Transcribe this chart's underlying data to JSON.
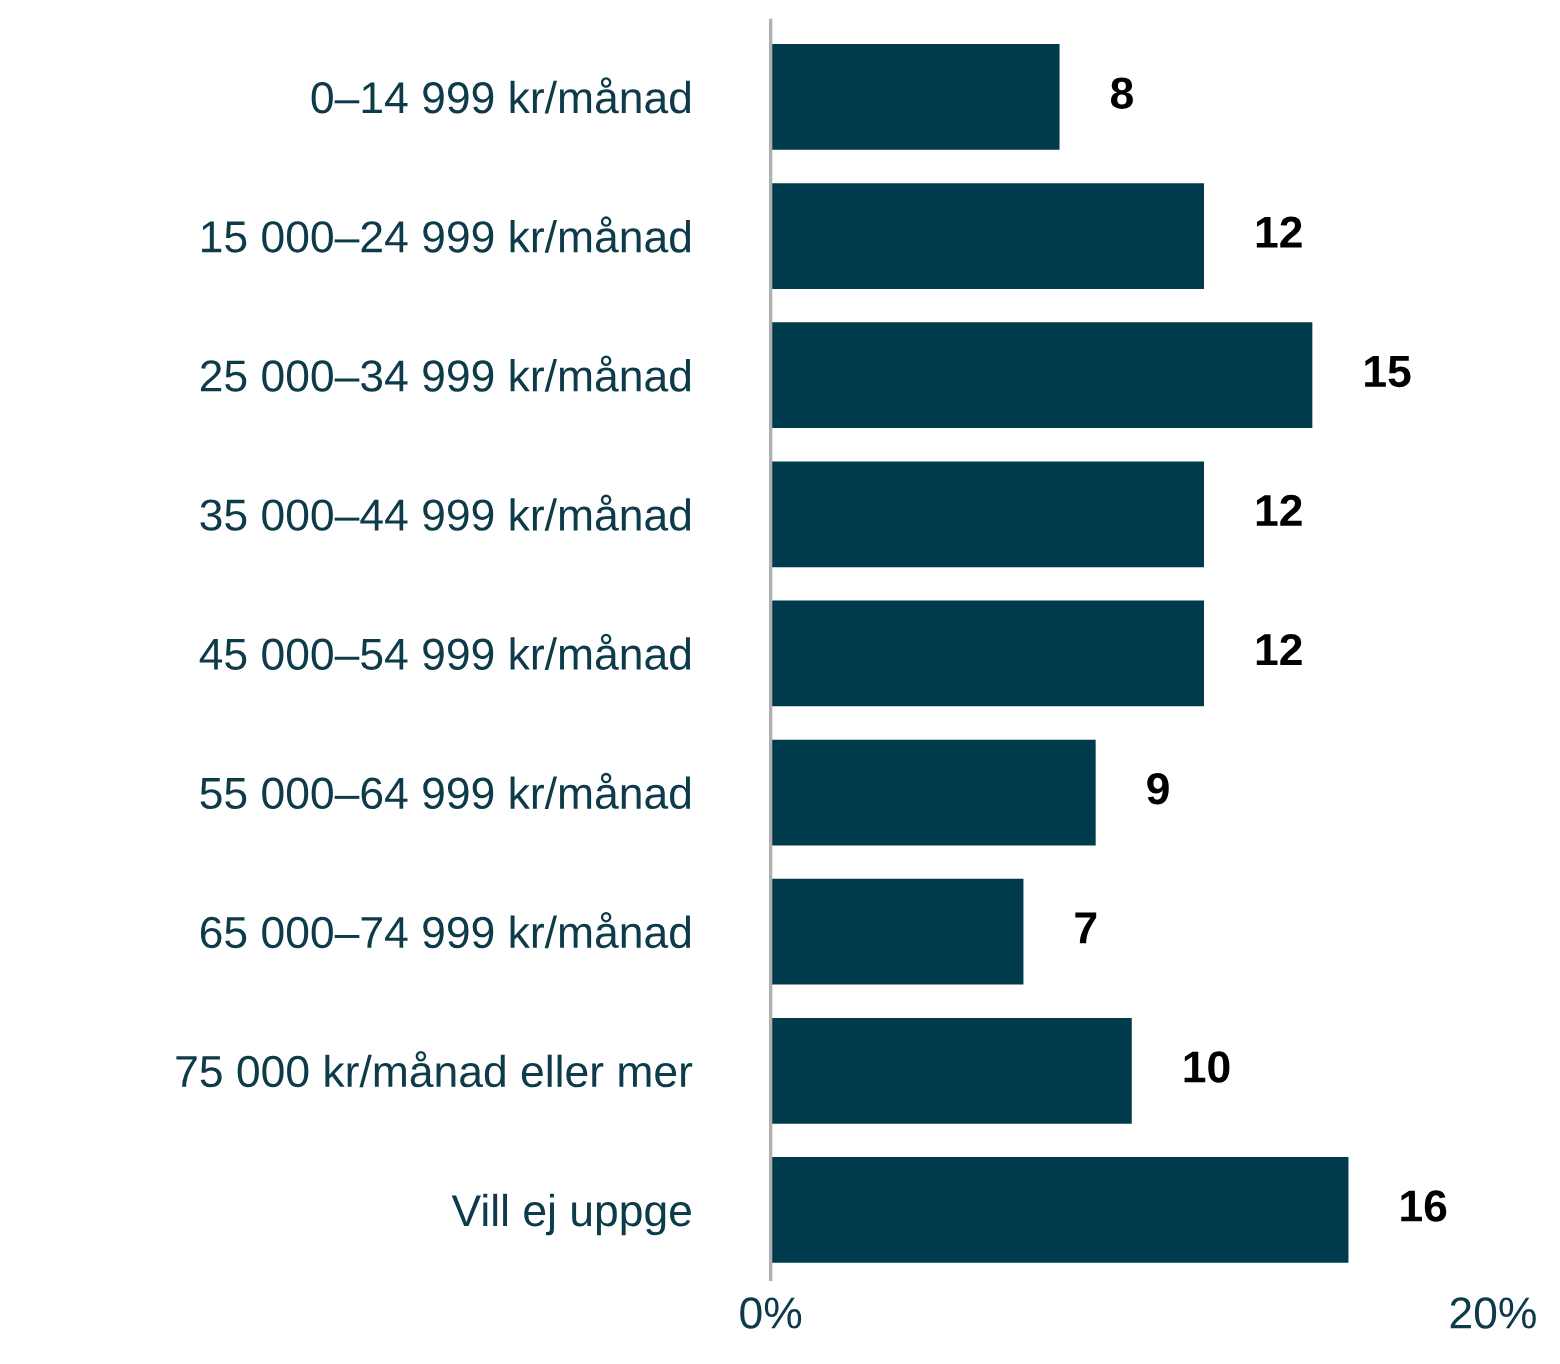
{
  "chart_data": {
    "type": "bar",
    "orientation": "horizontal",
    "categories": [
      "0–14 999 kr/månad",
      "15 000–24 999 kr/månad",
      "25 000–34 999 kr/månad",
      "35 000–44 999 kr/månad",
      "45 000–54 999 kr/månad",
      "55 000–64 999 kr/månad",
      "65 000–74 999 kr/månad",
      "75 000 kr/månad eller mer",
      "Vill ej uppge"
    ],
    "values": [
      8,
      12,
      15,
      12,
      12,
      9,
      7,
      10,
      16
    ],
    "color": "#003a4d",
    "data_labels": true,
    "xlim": [
      0,
      20
    ],
    "xticks": [
      {
        "value": 0,
        "label": "0%"
      },
      {
        "value": 20,
        "label": "20%"
      }
    ],
    "grid": false,
    "legend": false
  }
}
